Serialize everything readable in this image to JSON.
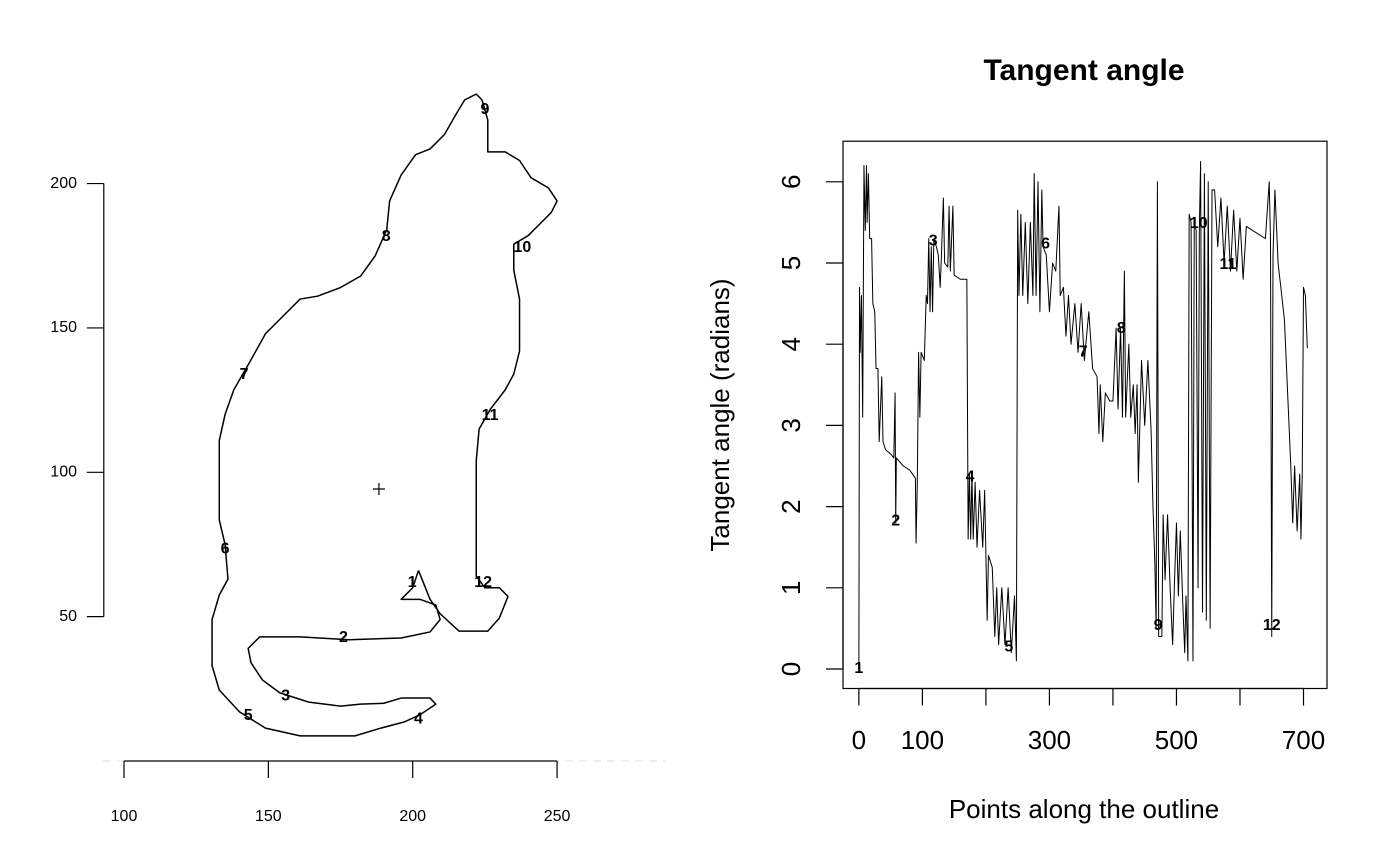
{
  "chart_data": [
    {
      "type": "line",
      "color": "#000000",
      "xlim": [
        93,
        287
      ],
      "ylim": [
        0,
        240
      ],
      "xticks": [
        100,
        150,
        200,
        250
      ],
      "yticks": [
        50,
        100,
        150,
        200
      ],
      "x": [
        202,
        206,
        209.5,
        216,
        226,
        230,
        233,
        230,
        225,
        222,
        222,
        223,
        227,
        232,
        235,
        237,
        237,
        235,
        235,
        240,
        246,
        248,
        250,
        247,
        241,
        237,
        232,
        226,
        226,
        224,
        222,
        218,
        215,
        211,
        206,
        201,
        196,
        192,
        191,
        187,
        182,
        175,
        167,
        161,
        154,
        149,
        144,
        138,
        135,
        133,
        133,
        135,
        136,
        133,
        130.5,
        130.5,
        133,
        140,
        149,
        161,
        180,
        189,
        197,
        202.5,
        208,
        206,
        196,
        190,
        182,
        175,
        164,
        154,
        148,
        144,
        143,
        147,
        161,
        178,
        196,
        206,
        209.5,
        208,
        202.5,
        196,
        200,
        202
      ],
      "values": [
        66,
        56,
        51,
        45,
        45,
        49.5,
        57,
        60,
        60,
        64,
        104,
        115,
        122,
        128.5,
        134,
        142,
        160,
        170,
        179,
        182,
        188,
        190,
        194,
        198.5,
        202,
        208,
        211,
        211,
        222,
        229,
        231,
        229,
        224,
        217,
        212,
        210,
        203,
        194,
        184,
        175,
        168,
        164,
        161,
        160,
        153,
        148,
        139,
        128.5,
        120,
        111,
        83.5,
        75,
        63,
        57.5,
        49,
        33,
        24.6,
        17,
        11.4,
        8.7,
        8.7,
        11.4,
        13.5,
        16,
        19.7,
        21.8,
        21.8,
        20,
        19.7,
        19,
        20.4,
        23.6,
        28,
        34,
        39,
        43,
        43,
        42,
        42.6,
        44.7,
        49,
        54,
        56,
        56,
        60,
        66
      ],
      "landmarks": {
        "labels": [
          "1",
          "2",
          "3",
          "4",
          "5",
          "6",
          "7",
          "8",
          "9",
          "10",
          "11",
          "12"
        ],
        "x": [
          199.8,
          176,
          156,
          202,
          143,
          135,
          141.6,
          190.8,
          225,
          238,
          226.8,
          224.4
        ],
        "y": [
          61.7,
          42.6,
          22.5,
          14.5,
          15.6,
          73.4,
          133.7,
          181.5,
          225.5,
          177.7,
          119.5,
          61.7
        ]
      },
      "centroid": {
        "x": 188.3,
        "y": 94.2
      }
    },
    {
      "type": "line",
      "color": "#000000",
      "box": true,
      "title": "Tangent angle",
      "xlabel": "Points along the outline",
      "ylabel": "Tangent angle (radians)",
      "xlim": [
        -25,
        737
      ],
      "ylim": [
        -0.24,
        6.5
      ],
      "xticks": [
        0,
        100,
        300,
        500,
        700
      ],
      "xticks_unlabeled": [
        200,
        400,
        600
      ],
      "yticks": [
        0,
        1,
        2,
        3,
        4,
        5,
        6
      ],
      "x": [
        0,
        1,
        2,
        4,
        6,
        8,
        10,
        12,
        13,
        15,
        17,
        20,
        22,
        25,
        27,
        30,
        32,
        36,
        38,
        42,
        50,
        55,
        57,
        58,
        59,
        70,
        80,
        89,
        90,
        92,
        94,
        96,
        98,
        103,
        106,
        108,
        110,
        112,
        114,
        116,
        118,
        122,
        125,
        128,
        130,
        133,
        135,
        140,
        142,
        144,
        148,
        150,
        160,
        170,
        172,
        174,
        176,
        178,
        180,
        183,
        186,
        190,
        195,
        198,
        200,
        202,
        204,
        210,
        214,
        217,
        220,
        225,
        230,
        235,
        240,
        245,
        248,
        250,
        252,
        255,
        258,
        262,
        266,
        270,
        274,
        276,
        279,
        282,
        285,
        288,
        290,
        295,
        300,
        305,
        310,
        315,
        317,
        322,
        326,
        330,
        334,
        340,
        345,
        350,
        355,
        362,
        368,
        375,
        378,
        380,
        384,
        388,
        395,
        400,
        405,
        408,
        412,
        415,
        418,
        420,
        425,
        428,
        432,
        435,
        438,
        440,
        445,
        450,
        455,
        460,
        463,
        466,
        468,
        470,
        472,
        477,
        479,
        482,
        486,
        490,
        494,
        497,
        500,
        503,
        506,
        510,
        513,
        515,
        518,
        520,
        523,
        526,
        528,
        531,
        534,
        536,
        538,
        541,
        544,
        547,
        550,
        553,
        556,
        560,
        565,
        570,
        575,
        580,
        585,
        590,
        595,
        600,
        605,
        610,
        620,
        630,
        640,
        646,
        648,
        650,
        652,
        655,
        660,
        670,
        680,
        683,
        686,
        690,
        694,
        696,
        698,
        700,
        703,
        706
      ],
      "values": [
        0,
        4.7,
        3.9,
        4.6,
        3.1,
        6.2,
        5.4,
        6.2,
        5.5,
        6.1,
        5.3,
        5.3,
        4.5,
        4.4,
        3.7,
        3.7,
        2.8,
        3.6,
        2.8,
        2.7,
        2.65,
        2.6,
        3.4,
        1.8,
        2.6,
        2.5,
        2.45,
        2.35,
        1.55,
        2.3,
        3.9,
        3.1,
        3.9,
        3.8,
        4.6,
        4.5,
        5.3,
        4.4,
        5.2,
        4.4,
        5.3,
        5.2,
        5.1,
        4.7,
        5.1,
        5.8,
        5.0,
        4.95,
        5.7,
        4.9,
        5.7,
        4.85,
        4.8,
        4.8,
        1.6,
        2.4,
        1.6,
        2.4,
        1.6,
        2.3,
        1.5,
        2.2,
        1.5,
        2.2,
        1.4,
        0.6,
        1.4,
        1.25,
        0.4,
        1.0,
        0.3,
        1.0,
        0.3,
        1.0,
        0.2,
        0.9,
        0.1,
        5.65,
        4.6,
        5.6,
        4.6,
        5.5,
        4.5,
        5.5,
        4.6,
        6.1,
        4.6,
        6.0,
        4.4,
        5.9,
        5.2,
        5.1,
        4.4,
        5.0,
        4.9,
        5.7,
        4.6,
        4.7,
        4.1,
        4.6,
        4.0,
        4.5,
        3.9,
        4.5,
        3.8,
        4.4,
        3.7,
        3.6,
        2.9,
        3.5,
        2.8,
        3.4,
        3.3,
        3.3,
        4.2,
        3.2,
        4.2,
        3.1,
        4.9,
        3.1,
        4.0,
        3.1,
        3.5,
        2.9,
        3.5,
        2.3,
        3.8,
        3.0,
        3.8,
        2.95,
        2.0,
        1.3,
        0.5,
        6.0,
        0.4,
        0.4,
        1.9,
        1.1,
        1.9,
        1.0,
        0.3,
        1.1,
        1.8,
        0.9,
        1.7,
        0.8,
        0.2,
        0.9,
        0.1,
        5.6,
        5.5,
        0.1,
        5.5,
        5.4,
        1.0,
        5.4,
        6.25,
        0.7,
        6.1,
        0.6,
        6.0,
        0.5,
        5.9,
        5.9,
        5.2,
        5.8,
        5.0,
        5.7,
        4.9,
        5.65,
        4.9,
        5.55,
        4.8,
        5.45,
        5.4,
        5.35,
        5.3,
        6.0,
        5.3,
        0.4,
        5.1,
        5.9,
        5.0,
        4.3,
        2.5,
        1.8,
        2.5,
        1.7,
        2.4,
        1.6,
        2.4,
        4.7,
        4.6,
        3.95
      ],
      "landmarks": {
        "labels": [
          "1",
          "2",
          "3",
          "4",
          "5",
          "6",
          "7",
          "8",
          "9",
          "10",
          "11",
          "12"
        ],
        "x": [
          0,
          58,
          117,
          175,
          236,
          294,
          353,
          413,
          471,
          535,
          581,
          650
        ],
        "y": [
          0,
          1.82,
          5.27,
          2.36,
          0.27,
          5.23,
          3.9,
          4.19,
          0.53,
          5.48,
          4.98,
          0.53
        ]
      }
    }
  ]
}
